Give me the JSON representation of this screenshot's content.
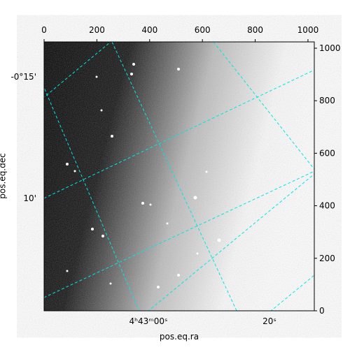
{
  "chart_data": {
    "type": "image",
    "xlabel": "pos.eq.ra",
    "ylabel": "pos.eq.dec",
    "xlim": [
      0,
      1024
    ],
    "ylim": [
      0,
      1024
    ],
    "xticks": [
      0,
      200,
      400,
      600,
      800,
      1000
    ],
    "yticks": [
      0,
      200,
      400,
      600,
      800,
      1000
    ],
    "ra_tick_labels": [
      "4ʰ43ᵐ00ˢ",
      "20ˢ"
    ],
    "dec_tick_labels": [
      "-0°15'",
      "10'"
    ],
    "grid_color": "#00e5e5"
  }
}
